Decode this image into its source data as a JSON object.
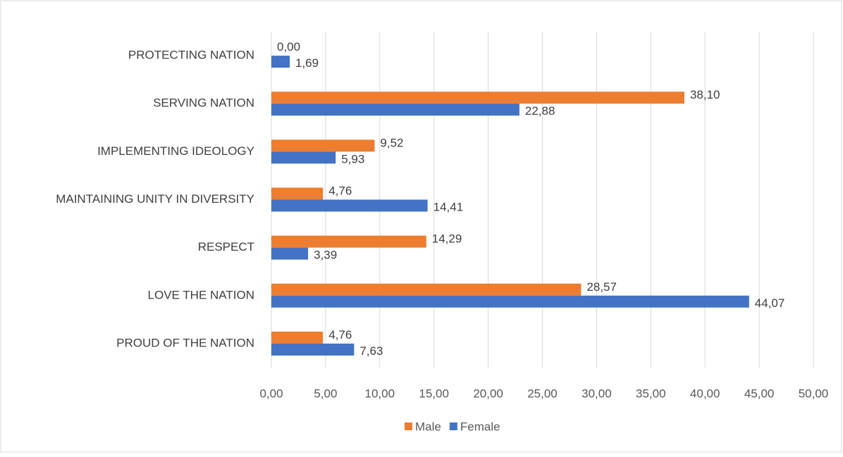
{
  "chart_data": {
    "type": "bar",
    "orientation": "horizontal",
    "categories": [
      "PROTECTING NATION",
      "SERVING NATION",
      "IMPLEMENTING IDEOLOGY",
      "MAINTAINING UNITY IN DIVERSITY",
      "RESPECT",
      "LOVE THE NATION",
      "PROUD OF THE NATION"
    ],
    "series": [
      {
        "name": "Male",
        "color": "#ed7d31",
        "values": [
          0,
          38.1,
          9.52,
          4.76,
          14.29,
          28.57,
          4.76
        ],
        "value_labels": [
          "0,00",
          "38,10",
          "9,52",
          "4,76",
          "14,29",
          "28,57",
          "4,76"
        ]
      },
      {
        "name": "Female",
        "color": "#4472c4",
        "values": [
          1.69,
          22.88,
          5.93,
          14.41,
          3.39,
          44.07,
          7.63
        ],
        "value_labels": [
          "1,69",
          "22,88",
          "5,93",
          "14,41",
          "3,39",
          "44,07",
          "7,63"
        ]
      }
    ],
    "xlim": [
      0,
      50
    ],
    "xticks": [
      {
        "value": 0,
        "label": "0,00"
      },
      {
        "value": 5,
        "label": "5,00"
      },
      {
        "value": 10,
        "label": "10,00"
      },
      {
        "value": 15,
        "label": "15,00"
      },
      {
        "value": 20,
        "label": "20,00"
      },
      {
        "value": 25,
        "label": "25,00"
      },
      {
        "value": 30,
        "label": "30,00"
      },
      {
        "value": 35,
        "label": "35,00"
      },
      {
        "value": 40,
        "label": "40,00"
      },
      {
        "value": 45,
        "label": "45,00"
      },
      {
        "value": 50,
        "label": "50,00"
      }
    ],
    "grid": true,
    "legend": "bottom"
  }
}
